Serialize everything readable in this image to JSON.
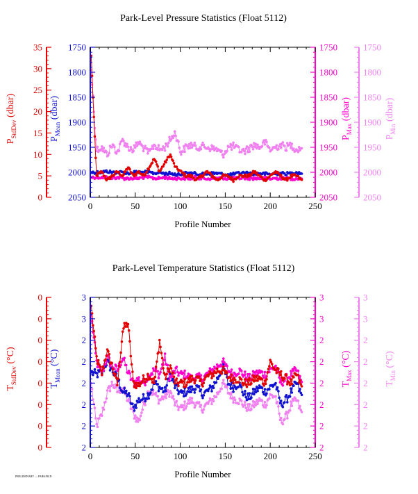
{
  "colors": {
    "stddev": "#e00000",
    "mean": "#1010d0",
    "max": "#ff00cc",
    "min": "#f080f0",
    "frame": "#000000"
  },
  "footer_note": "PRELIMINARY — PARK/BLD",
  "chart_data": [
    {
      "type": "line",
      "title": "Park-Level Pressure Statistics (Float 5112)",
      "xlabel": "Profile Number",
      "xlim": [
        0,
        250
      ],
      "xticks": [
        0,
        50,
        100,
        150,
        200,
        250
      ],
      "grid": false,
      "axes": {
        "stddev": {
          "label": "P",
          "sub": "StdDev",
          "unit": " (dbar)",
          "range": [
            0,
            35
          ],
          "ticks": [
            "0",
            "5",
            "10",
            "15",
            "20",
            "25",
            "30",
            "35"
          ]
        },
        "mean": {
          "label": "P",
          "sub": "Mean",
          "unit": " (dbar)",
          "range": [
            2050,
            1750
          ],
          "ticks": [
            "2050",
            "2000",
            "1950",
            "1900",
            "1850",
            "1800",
            "1750"
          ]
        },
        "max": {
          "label": "P",
          "sub": "Max",
          "unit": " (dbar)",
          "range": [
            2050,
            1750
          ],
          "ticks": [
            "2050",
            "2000",
            "1950",
            "1900",
            "1850",
            "1800",
            "1750"
          ]
        },
        "min": {
          "label": "P",
          "sub": "Min",
          "unit": " (dbar)",
          "range": [
            2050,
            1750
          ],
          "ticks": [
            "2050",
            "2000",
            "1950",
            "1900",
            "1850",
            "1800",
            "1750"
          ]
        }
      },
      "series": [
        {
          "key": "min",
          "n": 235,
          "x_start": 1,
          "values_sample": [
            1795,
            1955,
            1950,
            1965,
            1945,
            1960,
            1935,
            1950,
            1955,
            1940,
            1952,
            1962,
            1945,
            1955,
            1950,
            1935,
            1920,
            1960,
            1950,
            1945,
            1950,
            1948,
            1950,
            1952,
            1955,
            1965,
            1950,
            1948,
            1955,
            1958,
            1952,
            1945,
            1950,
            1940,
            1955,
            1950,
            1945,
            1950,
            1945,
            1955,
            1950
          ]
        },
        {
          "key": "mean",
          "n": 235,
          "x_start": 1,
          "values_sample": [
            2000,
            2000,
            2000,
            1998,
            2000,
            2000,
            2000,
            2002,
            2000,
            2000,
            2000,
            2000,
            2002,
            2000,
            2003,
            2002,
            2004,
            2004,
            2002,
            2002,
            2003,
            2004,
            2003,
            2002,
            2002,
            2004,
            2005,
            2004,
            2002,
            2001,
            2002,
            2003,
            2002,
            2003,
            2004,
            2003,
            2002,
            2003,
            2002,
            2000,
            2002
          ]
        },
        {
          "key": "max",
          "n": 235,
          "x_start": 1,
          "values_sample": [
            2010,
            2010,
            2010,
            2010,
            2012,
            2010,
            2012,
            2012,
            2012,
            2012,
            2010,
            2010,
            2012,
            2012,
            2010,
            2012,
            2012,
            2012,
            2012,
            2012,
            2010,
            2012,
            2013,
            2012,
            2012,
            2011,
            2013,
            2012,
            2012,
            2011,
            2012,
            2012,
            2012,
            2012,
            2013,
            2012,
            2012,
            2012,
            2013,
            2012,
            2012
          ]
        },
        {
          "key": "stddev",
          "n": 235,
          "x_start": 1,
          "values_sample": [
            33,
            5,
            6,
            4,
            5,
            6,
            5,
            7,
            5,
            6,
            5,
            7,
            9,
            6,
            8,
            10,
            7,
            6,
            5,
            5,
            4,
            5,
            6,
            5,
            4,
            5,
            5,
            4,
            5,
            5,
            5,
            6,
            5,
            4,
            5,
            6,
            5,
            4,
            5,
            5,
            4
          ]
        }
      ]
    },
    {
      "type": "line",
      "title": "Park-Level Temperature Statistics (Float 5112)",
      "xlabel": "Profile Number",
      "xlim": [
        0,
        250
      ],
      "xticks": [
        0,
        50,
        100,
        150,
        200,
        250
      ],
      "grid": false,
      "axes": {
        "stddev": {
          "label": "T",
          "sub": "StdDev",
          "unit": " (°C)",
          "range": [
            0,
            7
          ],
          "ticks": [
            "0",
            "0",
            "0",
            "0",
            "0",
            "0",
            "0",
            "0"
          ]
        },
        "mean": {
          "label": "T",
          "sub": "Mean",
          "unit": " (°C)",
          "range": [
            2.1,
            2.8
          ],
          "ticks": [
            "2",
            "2",
            "2",
            "2",
            "2",
            "2",
            "3",
            "3"
          ]
        },
        "max": {
          "label": "T",
          "sub": "Max",
          "unit": " (°C)",
          "range": [
            2.1,
            2.8
          ],
          "ticks": [
            "2",
            "2",
            "2",
            "2",
            "2",
            "2",
            "3",
            "3"
          ]
        },
        "min": {
          "label": "T",
          "sub": "Min",
          "unit": " (°C)",
          "range": [
            2.1,
            2.8
          ],
          "ticks": [
            "2",
            "2",
            "2",
            "2",
            "2",
            "2",
            "3",
            "3"
          ]
        }
      },
      "series": [
        {
          "key": "min",
          "n": 235,
          "x_start": 1,
          "values_sample": [
            2.4,
            2.2,
            2.25,
            2.35,
            2.4,
            2.36,
            2.38,
            2.32,
            2.26,
            2.22,
            2.3,
            2.37,
            2.35,
            2.32,
            2.34,
            2.36,
            2.3,
            2.28,
            2.3,
            2.32,
            2.3,
            2.28,
            2.3,
            2.32,
            2.35,
            2.4,
            2.36,
            2.33,
            2.32,
            2.3,
            2.28,
            2.3,
            2.32,
            2.3,
            2.34,
            2.34,
            2.22,
            2.24,
            2.3,
            2.32,
            2.26
          ]
        },
        {
          "key": "mean",
          "n": 235,
          "x_start": 1,
          "values_sample": [
            2.45,
            2.44,
            2.45,
            2.5,
            2.46,
            2.42,
            2.36,
            2.35,
            2.28,
            2.32,
            2.33,
            2.35,
            2.4,
            2.38,
            2.36,
            2.44,
            2.38,
            2.35,
            2.36,
            2.37,
            2.38,
            2.35,
            2.36,
            2.38,
            2.42,
            2.48,
            2.4,
            2.38,
            2.4,
            2.35,
            2.33,
            2.36,
            2.38,
            2.36,
            2.38,
            2.4,
            2.3,
            2.32,
            2.36,
            2.4,
            2.34
          ]
        },
        {
          "key": "max",
          "n": 235,
          "x_start": 1,
          "values_sample": [
            2.72,
            2.5,
            2.44,
            2.52,
            2.48,
            2.46,
            2.52,
            2.45,
            2.4,
            2.42,
            2.4,
            2.44,
            2.46,
            2.44,
            2.52,
            2.42,
            2.46,
            2.44,
            2.44,
            2.42,
            2.43,
            2.42,
            2.44,
            2.46,
            2.48,
            2.5,
            2.46,
            2.44,
            2.46,
            2.44,
            2.42,
            2.44,
            2.45,
            2.44,
            2.46,
            2.48,
            2.4,
            2.42,
            2.44,
            2.46,
            2.4
          ]
        },
        {
          "key": "stddev",
          "n": 235,
          "x_start": 1,
          "values_sample": [
            6.6,
            4.2,
            3.4,
            4.5,
            3.8,
            2.9,
            5.5,
            5.8,
            3.0,
            2.9,
            3.2,
            3.4,
            3.0,
            5.0,
            3.2,
            3.8,
            3.0,
            3.0,
            3.0,
            3.2,
            3.2,
            3.0,
            3.3,
            3.4,
            3.6,
            3.6,
            3.3,
            3.2,
            3.2,
            3.0,
            3.0,
            3.2,
            3.2,
            3.0,
            4.0,
            3.6,
            3.4,
            3.2,
            3.0,
            3.4,
            2.8
          ]
        }
      ]
    }
  ]
}
